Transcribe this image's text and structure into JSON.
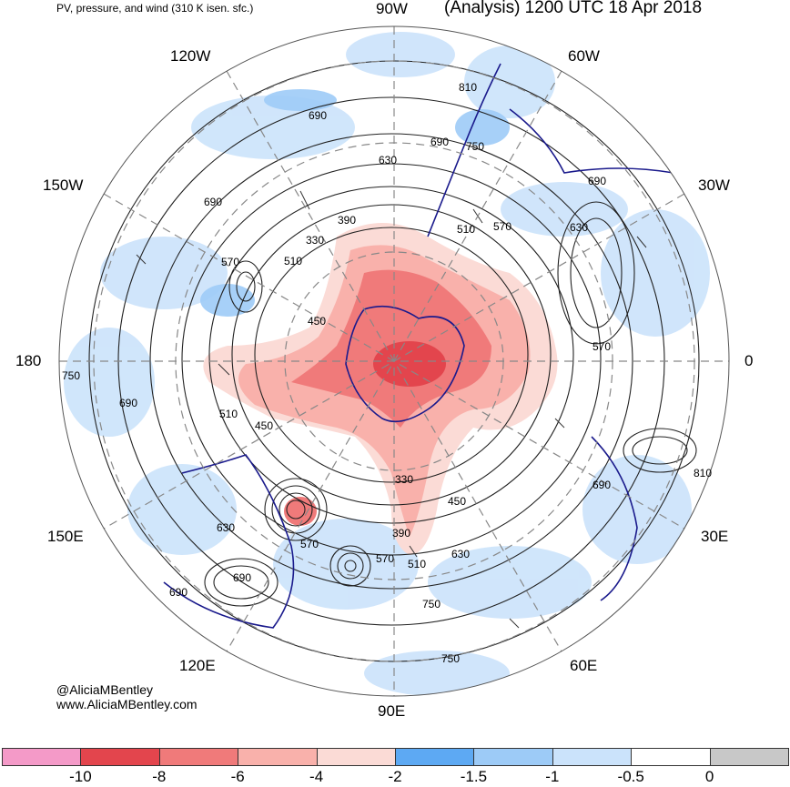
{
  "header": {
    "left_title": "PV, pressure, and wind (310 K isen. sfc.)",
    "right_title": "(Analysis) 1200 UTC 18 Apr 2018"
  },
  "longitude_labels": {
    "top": "90W",
    "top_left": "120W",
    "top_right": "60W",
    "upper_left": "150W",
    "upper_right": "30W",
    "left": "180",
    "right": "0",
    "lower_left": "150E",
    "lower_right": "30E",
    "bottom_left": "120E",
    "bottom_right": "60E",
    "bottom": "90E"
  },
  "contour_labels": [
    {
      "text": "810"
    },
    {
      "text": "690"
    },
    {
      "text": "630"
    },
    {
      "text": "750"
    },
    {
      "text": "690"
    },
    {
      "text": "690"
    },
    {
      "text": "390"
    },
    {
      "text": "330"
    },
    {
      "text": "510"
    },
    {
      "text": "570"
    },
    {
      "text": "630"
    },
    {
      "text": "570"
    },
    {
      "text": "510"
    },
    {
      "text": "450"
    },
    {
      "text": "570"
    },
    {
      "text": "750"
    },
    {
      "text": "690"
    },
    {
      "text": "510"
    },
    {
      "text": "450"
    },
    {
      "text": "330"
    },
    {
      "text": "450"
    },
    {
      "text": "390"
    },
    {
      "text": "570"
    },
    {
      "text": "510"
    },
    {
      "text": "630"
    },
    {
      "text": "630"
    },
    {
      "text": "570"
    },
    {
      "text": "690"
    },
    {
      "text": "750"
    },
    {
      "text": "690"
    },
    {
      "text": "690"
    },
    {
      "text": "810"
    },
    {
      "text": "750"
    },
    {
      "text": "690"
    }
  ],
  "credits": {
    "handle": "@AliciaMBentley",
    "website": "www.AliciaMBentley.com"
  },
  "colorbar": {
    "colors": [
      "#f49ac8",
      "#e3454d",
      "#f07a7a",
      "#f9b1ab",
      "#fbdbd6",
      "#5da9f3",
      "#9dcbf7",
      "#cbe3fb",
      "#ffffff",
      "#c8c8c8"
    ],
    "labels": [
      "-10",
      "-8",
      "-6",
      "-4",
      "-2",
      "-1.5",
      "-1",
      "-0.5",
      "0"
    ]
  },
  "map_colors": {
    "negative_core": "#f07a7a",
    "negative_light": "#fbdbd6",
    "blue_light": "#cbe3fb",
    "blue_mid": "#9dcbf7",
    "coastline": "#1a1a8c"
  }
}
